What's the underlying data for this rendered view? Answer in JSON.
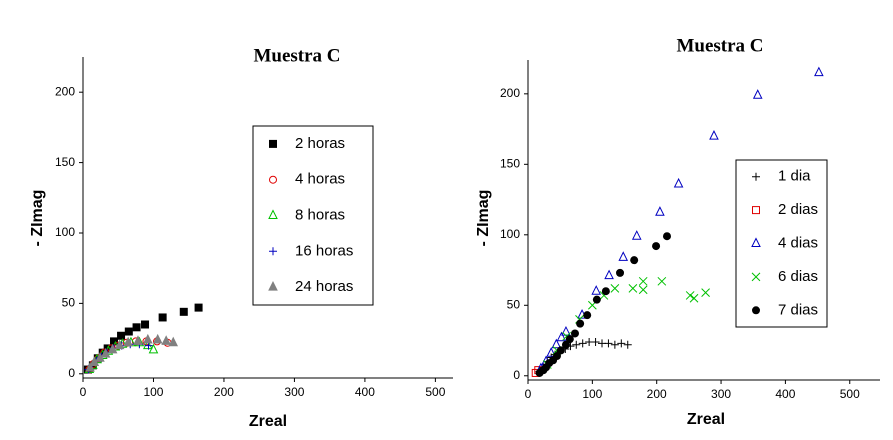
{
  "chart_data": [
    {
      "type": "scatter",
      "title": "Muestra C",
      "x_label": "Zreal",
      "y_label": "- ZImag",
      "xlim": [
        0,
        525
      ],
      "ylim": [
        -3,
        225
      ],
      "xticks": [
        0,
        100,
        200,
        300,
        400,
        500
      ],
      "yticks": [
        0,
        50,
        100,
        150,
        200
      ],
      "series": [
        {
          "name": "2 horas",
          "color": "#000000",
          "marker": "square",
          "x": [
            7,
            14,
            21,
            28,
            35,
            44,
            54,
            65,
            76,
            88,
            113,
            143,
            164
          ],
          "values": [
            3,
            6,
            11,
            15,
            18,
            23,
            27,
            30,
            33,
            35,
            40,
            44,
            47
          ]
        },
        {
          "name": "4 horas",
          "color": "#e00000",
          "marker": "circle",
          "x": [
            9,
            15,
            22,
            30,
            40,
            50,
            62,
            75,
            90,
            105,
            120
          ],
          "values": [
            3,
            7,
            11,
            15,
            18,
            20,
            22,
            23,
            23,
            23,
            22
          ]
        },
        {
          "name": "8 horas",
          "color": "#00c000",
          "marker": "triangle",
          "x": [
            9,
            14,
            20,
            28,
            36,
            46,
            56,
            68,
            80,
            92,
            100
          ],
          "values": [
            3,
            6,
            10,
            13,
            16,
            19,
            21,
            22,
            22,
            20,
            17
          ]
        },
        {
          "name": "16 horas",
          "color": "#0000c0",
          "marker": "plus",
          "x": [
            8,
            13,
            19,
            26,
            34,
            44,
            55,
            67,
            80,
            93
          ],
          "values": [
            3,
            6,
            9,
            12,
            15,
            18,
            20,
            21,
            21,
            20
          ]
        },
        {
          "name": "24 horas",
          "color": "#808080",
          "marker": "triangle-filled",
          "x": [
            10,
            16,
            24,
            32,
            42,
            52,
            64,
            78,
            92,
            106,
            118,
            128
          ],
          "values": [
            4,
            8,
            11,
            14,
            17,
            20,
            22,
            23,
            24,
            24,
            23,
            22
          ]
        }
      ]
    },
    {
      "type": "scatter",
      "title": "Muestra C",
      "x_label": "Zreal",
      "y_label": "- ZImag",
      "xlim": [
        0,
        547
      ],
      "ylim": [
        -3,
        224
      ],
      "xticks": [
        0,
        100,
        200,
        300,
        400,
        500
      ],
      "yticks": [
        0,
        50,
        100,
        150,
        200
      ],
      "series": [
        {
          "name": "1 dia",
          "color": "#000000",
          "marker": "plus",
          "x": [
            18,
            24,
            30,
            36,
            42,
            50,
            58,
            66,
            75,
            85,
            95,
            105,
            115,
            125,
            135,
            145,
            155
          ],
          "values": [
            3,
            6,
            10,
            13,
            15,
            17,
            19,
            21,
            22,
            23,
            24,
            24,
            23,
            23,
            22,
            23,
            22
          ]
        },
        {
          "name": "2 dias",
          "color": "#e00000",
          "marker": "square-open",
          "x": [
            12,
            16
          ],
          "values": [
            2,
            4
          ]
        },
        {
          "name": "4 dias",
          "color": "#0000c0",
          "marker": "triangle",
          "x": [
            20,
            28,
            36,
            44,
            52,
            59,
            84,
            106,
            126,
            148,
            169,
            205,
            234,
            289,
            357,
            452
          ],
          "values": [
            5,
            10,
            16,
            22,
            27,
            31,
            43,
            60,
            71,
            84,
            99,
            116,
            136,
            170,
            199,
            215
          ]
        },
        {
          "name": "6 dias",
          "color": "#00c000",
          "marker": "x",
          "x": [
            30,
            45,
            60,
            80,
            100,
            118,
            135,
            163,
            179,
            179,
            208,
            252,
            258,
            276
          ],
          "values": [
            8,
            18,
            28,
            40,
            50,
            57,
            62,
            62,
            67,
            61,
            67,
            57,
            55,
            59
          ]
        },
        {
          "name": "7 dias",
          "color": "#000000",
          "marker": "dot",
          "x": [
            18,
            24,
            28,
            33,
            39,
            45,
            51,
            59,
            65,
            73,
            81,
            92,
            107,
            121,
            143,
            165,
            199,
            216
          ],
          "values": [
            2,
            4,
            6,
            9,
            11,
            14,
            18,
            22,
            26,
            30,
            37,
            43,
            54,
            60,
            73,
            82,
            92,
            99
          ]
        }
      ]
    }
  ]
}
